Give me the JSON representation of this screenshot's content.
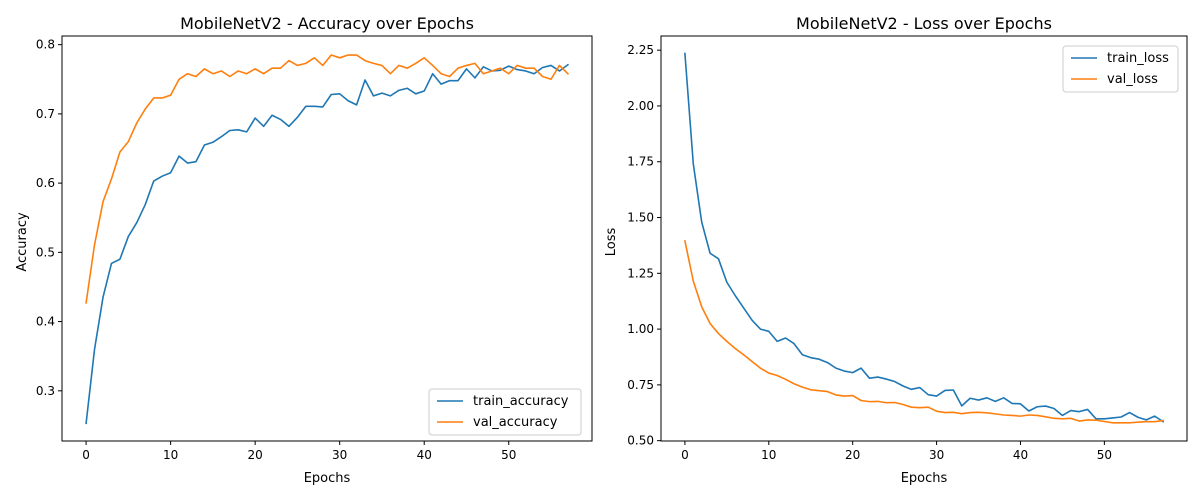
{
  "chart_data": [
    {
      "type": "line",
      "title": "MobileNetV2 - Accuracy over Epochs",
      "xlabel": "Epochs",
      "ylabel": "Accuracy",
      "xlim": [
        -2.85,
        59.85
      ],
      "ylim": [
        0.2275,
        0.8125
      ],
      "xticks": [
        0,
        10,
        20,
        30,
        40,
        50
      ],
      "xtick_labels": [
        "0",
        "10",
        "20",
        "30",
        "40",
        "50"
      ],
      "yticks": [
        0.3,
        0.4,
        0.5,
        0.6,
        0.7,
        0.8
      ],
      "ytick_labels": [
        "0.3",
        "0.4",
        "0.5",
        "0.6",
        "0.7",
        "0.8"
      ],
      "legend_position": "lower-right",
      "grid": false,
      "x": [
        0,
        1,
        2,
        3,
        4,
        5,
        6,
        7,
        8,
        9,
        10,
        11,
        12,
        13,
        14,
        15,
        16,
        17,
        18,
        19,
        20,
        21,
        22,
        23,
        24,
        25,
        26,
        27,
        28,
        29,
        30,
        31,
        32,
        33,
        34,
        35,
        36,
        37,
        38,
        39,
        40,
        41,
        42,
        43,
        44,
        45,
        46,
        47,
        48,
        49,
        50,
        51,
        52,
        53,
        54,
        55,
        56,
        57
      ],
      "series": [
        {
          "name": "train_accuracy",
          "color": "#1f77b4",
          "values": [
            0.253,
            0.36,
            0.435,
            0.484,
            0.49,
            0.523,
            0.543,
            0.569,
            0.603,
            0.61,
            0.615,
            0.639,
            0.629,
            0.631,
            0.655,
            0.659,
            0.667,
            0.676,
            0.677,
            0.674,
            0.694,
            0.682,
            0.698,
            0.692,
            0.682,
            0.695,
            0.711,
            0.711,
            0.71,
            0.728,
            0.729,
            0.719,
            0.713,
            0.749,
            0.726,
            0.73,
            0.726,
            0.734,
            0.737,
            0.729,
            0.733,
            0.758,
            0.743,
            0.748,
            0.748,
            0.765,
            0.752,
            0.768,
            0.762,
            0.763,
            0.769,
            0.764,
            0.762,
            0.758,
            0.767,
            0.77,
            0.762,
            0.771
          ]
        },
        {
          "name": "val_accuracy",
          "color": "#ff7f0e",
          "values": [
            0.427,
            0.511,
            0.573,
            0.606,
            0.645,
            0.66,
            0.687,
            0.707,
            0.723,
            0.723,
            0.727,
            0.75,
            0.758,
            0.754,
            0.765,
            0.758,
            0.762,
            0.754,
            0.762,
            0.758,
            0.765,
            0.758,
            0.766,
            0.766,
            0.777,
            0.77,
            0.773,
            0.781,
            0.77,
            0.785,
            0.781,
            0.785,
            0.785,
            0.777,
            0.773,
            0.77,
            0.758,
            0.77,
            0.766,
            0.773,
            0.781,
            0.77,
            0.758,
            0.754,
            0.766,
            0.77,
            0.773,
            0.758,
            0.762,
            0.766,
            0.758,
            0.77,
            0.766,
            0.766,
            0.754,
            0.75,
            0.77,
            0.758
          ]
        }
      ]
    },
    {
      "type": "line",
      "title": "MobileNetV2 - Loss over Epochs",
      "xlabel": "Epochs",
      "ylabel": "Loss",
      "xlim": [
        -2.85,
        59.85
      ],
      "ylim": [
        0.4985,
        2.3135
      ],
      "xticks": [
        0,
        10,
        20,
        30,
        40,
        50
      ],
      "xtick_labels": [
        "0",
        "10",
        "20",
        "30",
        "40",
        "50"
      ],
      "yticks": [
        0.5,
        0.75,
        1.0,
        1.25,
        1.5,
        1.75,
        2.0,
        2.25
      ],
      "ytick_labels": [
        "0.50",
        "0.75",
        "1.00",
        "1.25",
        "1.50",
        "1.75",
        "2.00",
        "2.25"
      ],
      "legend_position": "upper-right",
      "grid": false,
      "x": [
        0,
        1,
        2,
        3,
        4,
        5,
        6,
        7,
        8,
        9,
        10,
        11,
        12,
        13,
        14,
        15,
        16,
        17,
        18,
        19,
        20,
        21,
        22,
        23,
        24,
        25,
        26,
        27,
        28,
        29,
        30,
        31,
        32,
        33,
        34,
        35,
        36,
        37,
        38,
        39,
        40,
        41,
        42,
        43,
        44,
        45,
        46,
        47,
        48,
        49,
        50,
        51,
        52,
        53,
        54,
        55,
        56,
        57
      ],
      "series": [
        {
          "name": "train_loss",
          "color": "#1f77b4",
          "values": [
            2.235,
            1.74,
            1.48,
            1.34,
            1.315,
            1.21,
            1.15,
            1.095,
            1.04,
            1.0,
            0.99,
            0.945,
            0.96,
            0.935,
            0.885,
            0.872,
            0.865,
            0.85,
            0.825,
            0.812,
            0.805,
            0.825,
            0.78,
            0.785,
            0.776,
            0.765,
            0.745,
            0.73,
            0.738,
            0.706,
            0.7,
            0.725,
            0.727,
            0.656,
            0.69,
            0.682,
            0.692,
            0.676,
            0.692,
            0.667,
            0.665,
            0.633,
            0.652,
            0.655,
            0.644,
            0.613,
            0.635,
            0.63,
            0.64,
            0.598,
            0.598,
            0.602,
            0.606,
            0.626,
            0.605,
            0.593,
            0.61,
            0.585
          ]
        },
        {
          "name": "val_loss",
          "color": "#ff7f0e",
          "values": [
            1.395,
            1.215,
            1.1,
            1.025,
            0.98,
            0.945,
            0.913,
            0.885,
            0.855,
            0.825,
            0.803,
            0.792,
            0.775,
            0.755,
            0.74,
            0.728,
            0.724,
            0.72,
            0.705,
            0.7,
            0.702,
            0.68,
            0.675,
            0.676,
            0.67,
            0.671,
            0.662,
            0.65,
            0.648,
            0.65,
            0.632,
            0.626,
            0.627,
            0.621,
            0.626,
            0.627,
            0.625,
            0.62,
            0.615,
            0.613,
            0.61,
            0.615,
            0.613,
            0.607,
            0.6,
            0.598,
            0.6,
            0.588,
            0.593,
            0.592,
            0.586,
            0.58,
            0.58,
            0.58,
            0.583,
            0.585,
            0.585,
            0.59
          ]
        }
      ]
    }
  ]
}
